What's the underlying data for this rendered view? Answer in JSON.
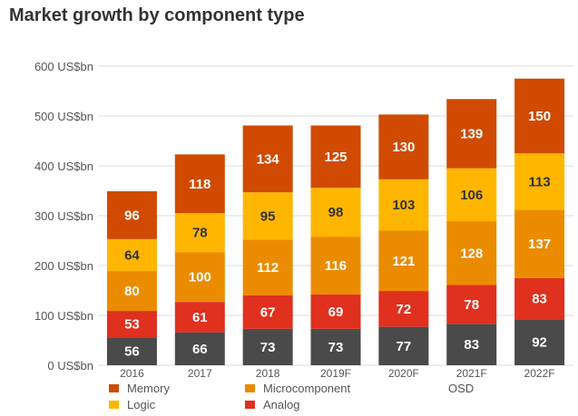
{
  "title": "Market growth by component type",
  "chart_data": {
    "type": "bar",
    "stacked": true,
    "title": "Market growth by component type",
    "categories": [
      "2016",
      "2017",
      "2018",
      "2019F",
      "2020F",
      "2021F",
      "2022F"
    ],
    "y_ticks": [
      "0 US$bn",
      "100 US$bn",
      "200 US$bn",
      "300 US$bn",
      "400 US$bn",
      "500 US$bn",
      "600 US$bn"
    ],
    "ylim": [
      0,
      600
    ],
    "grid": true,
    "series": [
      {
        "name": "OSD",
        "color": "#4a4a4a",
        "label_color": "#ffffff",
        "values": [
          56,
          66,
          73,
          73,
          77,
          83,
          92
        ]
      },
      {
        "name": "Analog",
        "color": "#e0301e",
        "label_color": "#ffffff",
        "values": [
          53,
          61,
          67,
          69,
          72,
          78,
          83
        ]
      },
      {
        "name": "Microcomponent",
        "color": "#eb8c00",
        "label_color": "#ffffff",
        "values": [
          80,
          100,
          112,
          116,
          121,
          128,
          137
        ]
      },
      {
        "name": "Logic",
        "color": "#ffb600",
        "label_color": "#333333",
        "values": [
          64,
          78,
          95,
          98,
          103,
          106,
          113
        ]
      },
      {
        "name": "Memory",
        "color": "#d04a02",
        "label_color": "#ffffff",
        "values": [
          96,
          118,
          134,
          125,
          130,
          139,
          150
        ]
      }
    ],
    "legend": [
      {
        "name": "Memory",
        "color": "#d04a02"
      },
      {
        "name": "Microcomponent",
        "color": "#eb8c00"
      },
      {
        "name": "OSD",
        "color": "#4a4a4a"
      },
      {
        "name": "Logic",
        "color": "#ffb600"
      },
      {
        "name": "Analog",
        "color": "#e0301e"
      }
    ],
    "legend_position": "bottom"
  }
}
